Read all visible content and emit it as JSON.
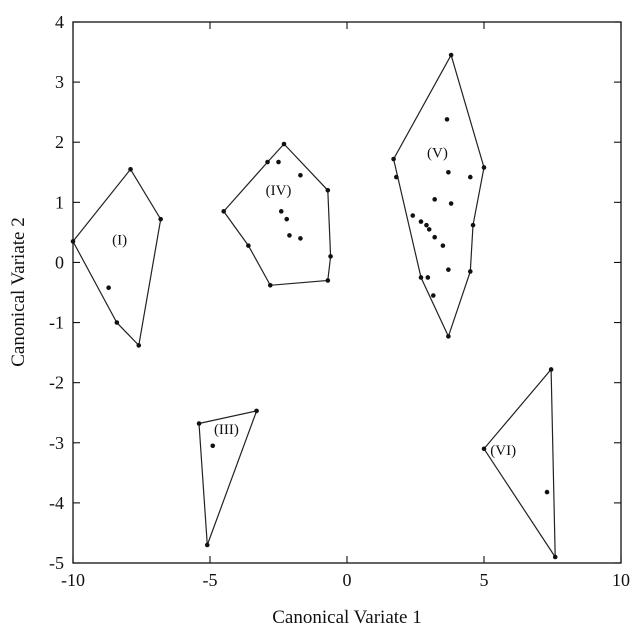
{
  "chart_data": {
    "type": "scatter",
    "xlabel": "Canonical Variate 1",
    "ylabel": "Canonical Variate 2",
    "xlim": [
      -10,
      10
    ],
    "ylim": [
      -5,
      4
    ],
    "xticks": [
      -10,
      -5,
      0,
      5,
      10
    ],
    "yticks": [
      -5,
      -4,
      -3,
      -2,
      -1,
      0,
      1,
      2,
      3,
      4
    ],
    "grid": false,
    "groups": [
      {
        "label": "(I)",
        "label_pos": [
          -8.3,
          0.3
        ],
        "hull": [
          [
            -10.0,
            0.35
          ],
          [
            -7.9,
            1.55
          ],
          [
            -6.8,
            0.72
          ],
          [
            -7.6,
            -1.38
          ],
          [
            -8.4,
            -1.0
          ]
        ],
        "points": [
          [
            -10.0,
            0.35
          ],
          [
            -7.9,
            1.55
          ],
          [
            -6.8,
            0.72
          ],
          [
            -7.6,
            -1.38
          ],
          [
            -8.4,
            -1.0
          ],
          [
            -8.7,
            -0.42
          ]
        ]
      },
      {
        "label": "(III)",
        "label_pos": [
          -4.4,
          -2.85
        ],
        "hull": [
          [
            -5.4,
            -2.68
          ],
          [
            -3.3,
            -2.47
          ],
          [
            -5.1,
            -4.7
          ]
        ],
        "points": [
          [
            -5.4,
            -2.68
          ],
          [
            -3.3,
            -2.47
          ],
          [
            -5.1,
            -4.7
          ],
          [
            -4.9,
            -3.05
          ]
        ]
      },
      {
        "label": "(IV)",
        "label_pos": [
          -2.5,
          1.12
        ],
        "hull": [
          [
            -2.3,
            1.97
          ],
          [
            -0.7,
            1.2
          ],
          [
            -0.6,
            0.1
          ],
          [
            -0.7,
            -0.3
          ],
          [
            -2.8,
            -0.38
          ],
          [
            -3.6,
            0.28
          ],
          [
            -4.5,
            0.85
          ],
          [
            -2.9,
            1.67
          ]
        ],
        "points": [
          [
            -2.3,
            1.97
          ],
          [
            -2.9,
            1.67
          ],
          [
            -2.5,
            1.67
          ],
          [
            -1.7,
            1.45
          ],
          [
            -0.7,
            1.2
          ],
          [
            -4.5,
            0.85
          ],
          [
            -2.4,
            0.85
          ],
          [
            -2.2,
            0.72
          ],
          [
            -2.1,
            0.45
          ],
          [
            -1.7,
            0.4
          ],
          [
            -3.6,
            0.28
          ],
          [
            -0.6,
            0.1
          ],
          [
            -0.7,
            -0.3
          ],
          [
            -2.8,
            -0.38
          ]
        ]
      },
      {
        "label": "(V)",
        "label_pos": [
          3.3,
          1.75
        ],
        "hull": [
          [
            3.8,
            3.45
          ],
          [
            5.0,
            1.58
          ],
          [
            4.6,
            0.62
          ],
          [
            4.5,
            -0.15
          ],
          [
            3.7,
            -1.23
          ],
          [
            2.7,
            -0.25
          ],
          [
            1.7,
            1.72
          ]
        ],
        "points": [
          [
            3.8,
            3.45
          ],
          [
            3.65,
            2.38
          ],
          [
            1.7,
            1.72
          ],
          [
            5.0,
            1.58
          ],
          [
            3.7,
            1.5
          ],
          [
            1.8,
            1.42
          ],
          [
            4.5,
            1.42
          ],
          [
            3.2,
            1.05
          ],
          [
            3.8,
            0.98
          ],
          [
            2.4,
            0.78
          ],
          [
            2.7,
            0.68
          ],
          [
            2.9,
            0.62
          ],
          [
            3.0,
            0.55
          ],
          [
            4.6,
            0.62
          ],
          [
            3.2,
            0.42
          ],
          [
            3.5,
            0.28
          ],
          [
            3.7,
            -0.12
          ],
          [
            4.5,
            -0.15
          ],
          [
            2.7,
            -0.25
          ],
          [
            2.95,
            -0.25
          ],
          [
            3.15,
            -0.55
          ],
          [
            3.7,
            -1.23
          ]
        ]
      },
      {
        "label": "(VI)",
        "label_pos": [
          5.7,
          -3.2
        ],
        "hull": [
          [
            7.45,
            -1.78
          ],
          [
            7.6,
            -4.9
          ],
          [
            5.0,
            -3.1
          ]
        ],
        "points": [
          [
            7.45,
            -1.78
          ],
          [
            7.6,
            -4.9
          ],
          [
            5.0,
            -3.1
          ],
          [
            7.3,
            -3.82
          ]
        ]
      }
    ]
  }
}
